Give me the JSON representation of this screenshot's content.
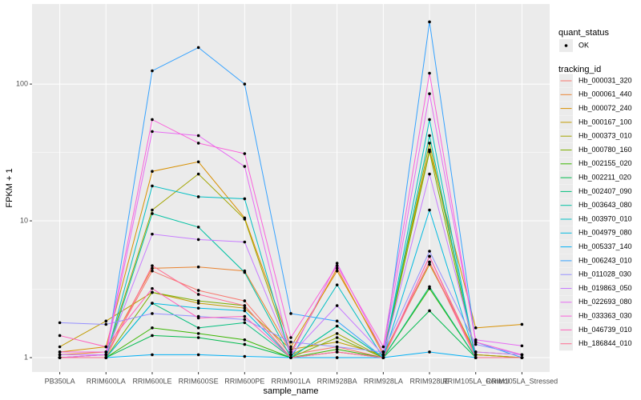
{
  "chart_data": {
    "type": "line",
    "x_label": "sample_name",
    "y_label": "FPKM + 1",
    "log_y": true,
    "grid": true,
    "background": "#EBEBEB",
    "point_color": "#000000",
    "ylim": [
      0.785,
      385
    ],
    "yticks": [
      1,
      10,
      100
    ],
    "categories": [
      "PB350LA",
      "RRIM600LA",
      "RRIM600LE",
      "RRIM600SE",
      "RRIM600PE",
      "RRIM901LA",
      "RRIM928BA",
      "RRIM928LA",
      "RRIM928LE",
      "RRIM105LA_Control",
      "RRIM105LA_Stressed"
    ],
    "quant_status": {
      "title": "quant_status",
      "labels": [
        "OK"
      ]
    },
    "legend_title": "tracking_id",
    "legend_position": "right",
    "series": [
      {
        "name": "Hb_000031_320",
        "color": "#F8766D",
        "values": [
          1.0,
          1.05,
          4.3,
          3.1,
          2.6,
          1.05,
          1.2,
          1.0,
          5.5,
          1.05,
          1.0
        ]
      },
      {
        "name": "Hb_000061_440",
        "color": "#EA8331",
        "values": [
          1.05,
          1.1,
          4.5,
          4.6,
          4.3,
          1.1,
          4.5,
          1.05,
          5.0,
          1.05,
          1.0
        ]
      },
      {
        "name": "Hb_000072_240",
        "color": "#D89000",
        "values": [
          1.1,
          1.2,
          23,
          27,
          10.5,
          1.2,
          4.3,
          1.1,
          33,
          1.65,
          1.75
        ]
      },
      {
        "name": "Hb_000167_100",
        "color": "#C09B00",
        "values": [
          1.2,
          1.85,
          3.0,
          2.5,
          2.3,
          1.15,
          1.3,
          1.05,
          4.8,
          1.1,
          1.05
        ]
      },
      {
        "name": "Hb_000373_010",
        "color": "#A3A500",
        "values": [
          1.0,
          1.05,
          12,
          22,
          10.3,
          1.05,
          1.5,
          1.0,
          37,
          1.05,
          1.0
        ]
      },
      {
        "name": "Hb_000780_160",
        "color": "#7CAE00",
        "values": [
          1.0,
          1.0,
          3.0,
          2.6,
          2.4,
          1.0,
          1.4,
          1.0,
          32,
          1.0,
          1.0
        ]
      },
      {
        "name": "Hb_002155_020",
        "color": "#39B600",
        "values": [
          1.0,
          1.0,
          1.65,
          1.5,
          1.35,
          1.0,
          1.15,
          1.0,
          3.2,
          1.0,
          1.0
        ]
      },
      {
        "name": "Hb_002211_020",
        "color": "#00BB4E",
        "values": [
          1.0,
          1.0,
          1.45,
          1.4,
          1.25,
          1.0,
          1.7,
          1.0,
          2.2,
          1.0,
          1.0
        ]
      },
      {
        "name": "Hb_002407_090",
        "color": "#00BF7D",
        "values": [
          1.0,
          1.0,
          2.5,
          1.65,
          1.8,
          1.0,
          1.1,
          1.0,
          3.3,
          1.0,
          1.0
        ]
      },
      {
        "name": "Hb_003643_080",
        "color": "#00C1A3",
        "values": [
          1.0,
          1.0,
          11.3,
          9,
          4.2,
          1.0,
          1.7,
          1.0,
          42,
          1.0,
          1.0
        ]
      },
      {
        "name": "Hb_003970_010",
        "color": "#00BFC4",
        "values": [
          1.0,
          1.0,
          18,
          15,
          14.5,
          1.0,
          3.4,
          1.0,
          55,
          1.0,
          1.0
        ]
      },
      {
        "name": "Hb_004979_080",
        "color": "#00BAE0",
        "values": [
          1.0,
          1.0,
          2.5,
          2.3,
          2.2,
          1.0,
          1.0,
          1.0,
          12,
          1.0,
          1.0
        ]
      },
      {
        "name": "Hb_005337_140",
        "color": "#00B0F6",
        "values": [
          1.0,
          1.0,
          1.05,
          1.05,
          1.02,
          1.0,
          1.0,
          1.0,
          1.1,
          1.0,
          1.0
        ]
      },
      {
        "name": "Hb_006243_010",
        "color": "#35A2FF",
        "values": [
          1.0,
          1.0,
          125,
          185,
          100,
          2.1,
          1.85,
          1.0,
          285,
          1.3,
          1.0
        ]
      },
      {
        "name": "Hb_011028_030",
        "color": "#9590FF",
        "values": [
          1.8,
          1.75,
          2.1,
          2.0,
          1.9,
          1.3,
          1.2,
          1.1,
          6.0,
          1.25,
          1.05
        ]
      },
      {
        "name": "Hb_019863_050",
        "color": "#C77CFF",
        "values": [
          1.05,
          1.05,
          8,
          7.3,
          7,
          1.05,
          2.4,
          1.05,
          22,
          1.1,
          1.05
        ]
      },
      {
        "name": "Hb_022693_080",
        "color": "#E76BF3",
        "values": [
          1.0,
          1.05,
          45,
          42,
          25,
          1.05,
          4.9,
          1.1,
          85,
          1.35,
          1.22
        ]
      },
      {
        "name": "Hb_033363_030",
        "color": "#FA62DB",
        "values": [
          1.1,
          1.1,
          55,
          37,
          31,
          1.4,
          4.7,
          1.2,
          120,
          1.3,
          1.05
        ]
      },
      {
        "name": "Hb_046739_010",
        "color": "#FF62BC",
        "values": [
          1.45,
          1.2,
          3.2,
          1.95,
          2.0,
          1.0,
          1.1,
          1.0,
          5.5,
          1.0,
          1.0
        ]
      },
      {
        "name": "Hb_186844_010",
        "color": "#FF6C91",
        "values": [
          1.0,
          1.0,
          4.7,
          2.9,
          2.4,
          1.0,
          1.1,
          1.0,
          5.0,
          1.0,
          1.0
        ]
      }
    ]
  }
}
